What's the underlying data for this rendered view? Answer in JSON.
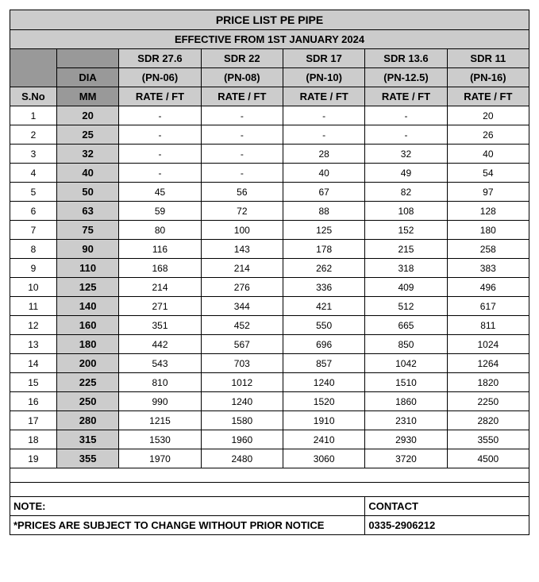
{
  "title": "PRICE LIST PE PIPE",
  "effective": "EFFECTIVE FROM 1ST JANUARY 2024",
  "header": {
    "sno": "S.No",
    "dia": "DIA",
    "mm": "MM",
    "rate": "RATE / FT"
  },
  "cols": [
    {
      "sdr": "SDR 27.6",
      "pn": "(PN-06)"
    },
    {
      "sdr": "SDR 22",
      "pn": "(PN-08)"
    },
    {
      "sdr": "SDR 17",
      "pn": "(PN-10)"
    },
    {
      "sdr": "SDR 13.6",
      "pn": "(PN-12.5)"
    },
    {
      "sdr": "SDR 11",
      "pn": "(PN-16)"
    }
  ],
  "rows": [
    {
      "sno": "1",
      "dia": "20",
      "r": [
        "-",
        "-",
        "-",
        "-",
        "20"
      ]
    },
    {
      "sno": "2",
      "dia": "25",
      "r": [
        "-",
        "-",
        "-",
        "-",
        "26"
      ]
    },
    {
      "sno": "3",
      "dia": "32",
      "r": [
        "-",
        "-",
        "28",
        "32",
        "40"
      ]
    },
    {
      "sno": "4",
      "dia": "40",
      "r": [
        "-",
        "-",
        "40",
        "49",
        "54"
      ]
    },
    {
      "sno": "5",
      "dia": "50",
      "r": [
        "45",
        "56",
        "67",
        "82",
        "97"
      ]
    },
    {
      "sno": "6",
      "dia": "63",
      "r": [
        "59",
        "72",
        "88",
        "108",
        "128"
      ]
    },
    {
      "sno": "7",
      "dia": "75",
      "r": [
        "80",
        "100",
        "125",
        "152",
        "180"
      ]
    },
    {
      "sno": "8",
      "dia": "90",
      "r": [
        "116",
        "143",
        "178",
        "215",
        "258"
      ]
    },
    {
      "sno": "9",
      "dia": "110",
      "r": [
        "168",
        "214",
        "262",
        "318",
        "383"
      ]
    },
    {
      "sno": "10",
      "dia": "125",
      "r": [
        "214",
        "276",
        "336",
        "409",
        "496"
      ]
    },
    {
      "sno": "11",
      "dia": "140",
      "r": [
        "271",
        "344",
        "421",
        "512",
        "617"
      ]
    },
    {
      "sno": "12",
      "dia": "160",
      "r": [
        "351",
        "452",
        "550",
        "665",
        "811"
      ]
    },
    {
      "sno": "13",
      "dia": "180",
      "r": [
        "442",
        "567",
        "696",
        "850",
        "1024"
      ]
    },
    {
      "sno": "14",
      "dia": "200",
      "r": [
        "543",
        "703",
        "857",
        "1042",
        "1264"
      ]
    },
    {
      "sno": "15",
      "dia": "225",
      "r": [
        "810",
        "1012",
        "1240",
        "1510",
        "1820"
      ]
    },
    {
      "sno": "16",
      "dia": "250",
      "r": [
        "990",
        "1240",
        "1520",
        "1860",
        "2250"
      ]
    },
    {
      "sno": "17",
      "dia": "280",
      "r": [
        "1215",
        "1580",
        "1910",
        "2310",
        "2820"
      ]
    },
    {
      "sno": "18",
      "dia": "315",
      "r": [
        "1530",
        "1960",
        "2410",
        "2930",
        "3550"
      ]
    },
    {
      "sno": "19",
      "dia": "355",
      "r": [
        "1970",
        "2480",
        "3060",
        "3720",
        "4500"
      ]
    }
  ],
  "footer": {
    "note_label": "NOTE:",
    "note_text": "*PRICES ARE SUBJECT TO CHANGE WITHOUT PRIOR NOTICE",
    "contact_label": "CONTACT",
    "contact_value": "0335-2906212"
  }
}
